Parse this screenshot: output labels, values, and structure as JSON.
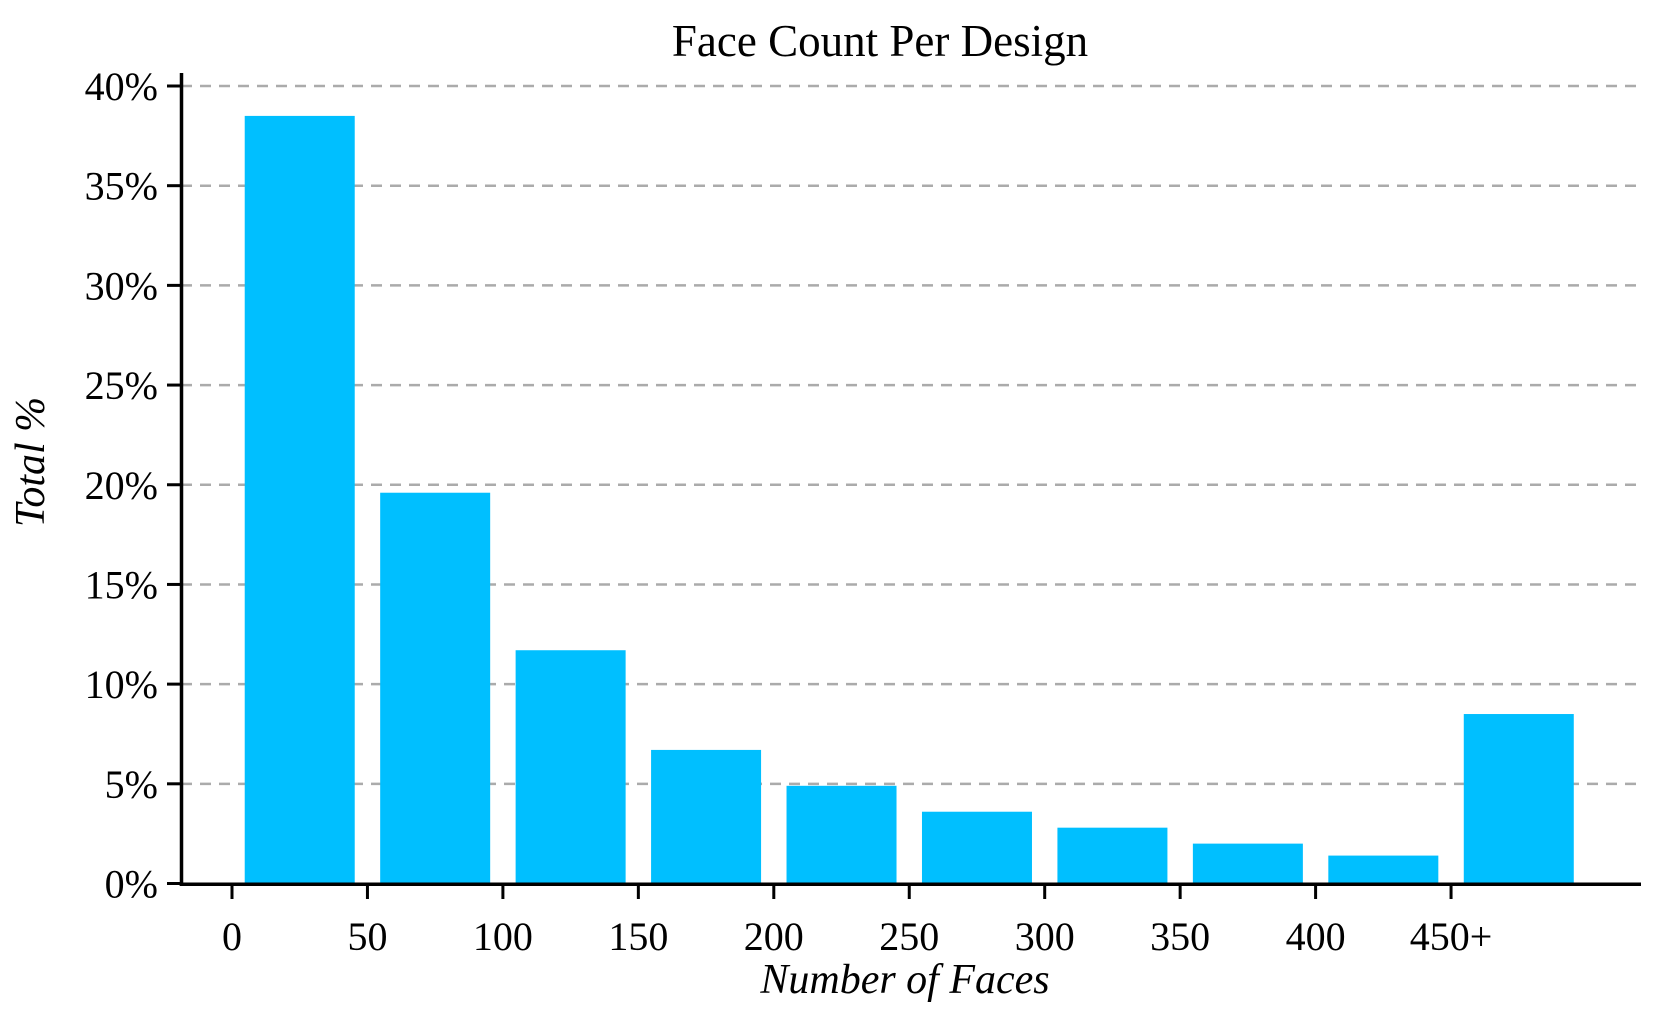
{
  "chart_data": {
    "type": "bar",
    "title": "Face Count Per Design",
    "xlabel": "Number of Faces",
    "ylabel": "Total %",
    "categories": [
      "0-50",
      "50-100",
      "100-150",
      "150-200",
      "200-250",
      "250-300",
      "300-350",
      "350-400",
      "400-450",
      "450+"
    ],
    "values": [
      38.5,
      19.6,
      11.7,
      6.7,
      4.9,
      3.6,
      2.8,
      2.0,
      1.4,
      8.5
    ],
    "x_tick_labels": [
      "0",
      "50",
      "100",
      "150",
      "200",
      "250",
      "300",
      "350",
      "400",
      "450+"
    ],
    "y_tick_labels": [
      "0%",
      "5%",
      "10%",
      "15%",
      "20%",
      "25%",
      "30%",
      "35%",
      "40%"
    ],
    "ylim": [
      0,
      40
    ],
    "y_tick_step": 5,
    "bar_color": "#00BFFF",
    "gridline_color": "#ababab",
    "axis_color": "#000000",
    "background_color": "#ffffff",
    "grid": "horizontal-dashed",
    "legend_position": "none"
  }
}
